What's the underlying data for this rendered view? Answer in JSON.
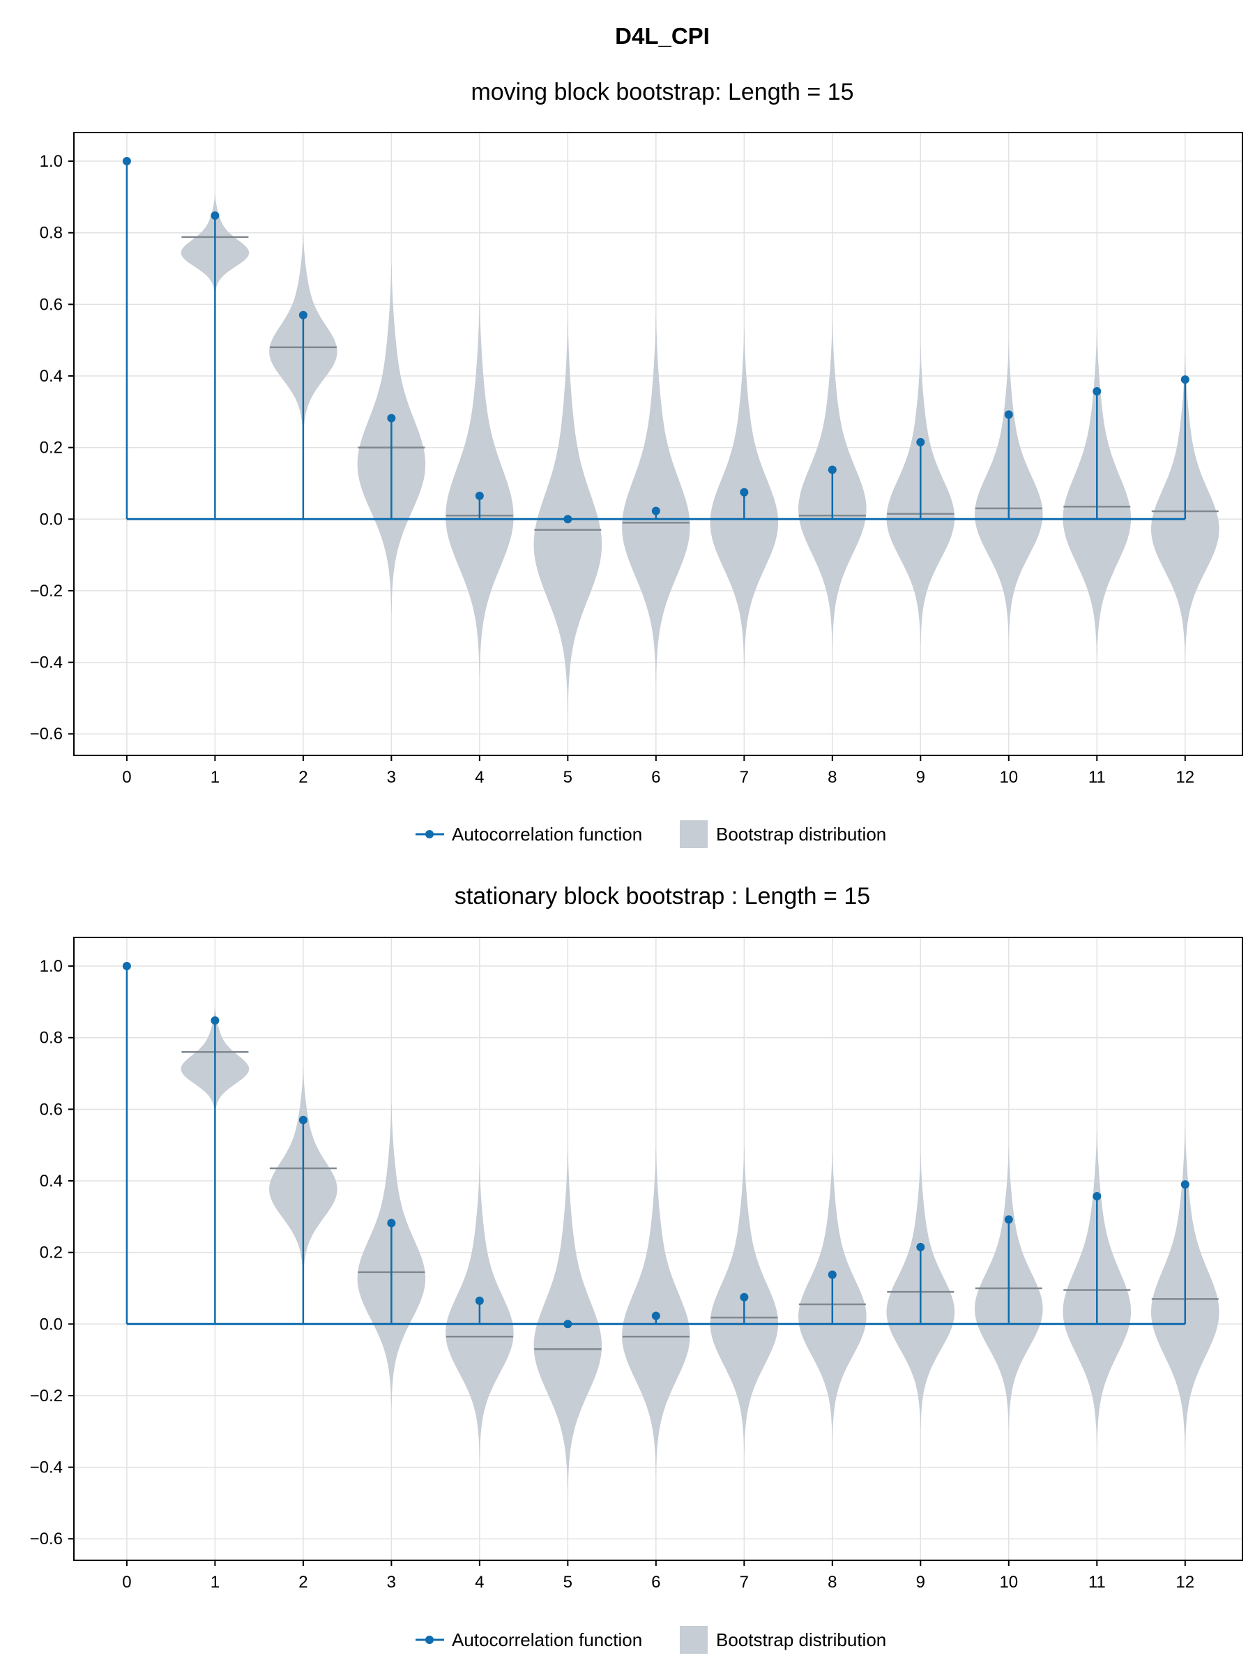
{
  "figure": {
    "title": "D4L_CPI"
  },
  "colors": {
    "acf": "#0f6cae",
    "violin_fill": "#c6cdd4",
    "median": "#808890",
    "grid": "#e2e2e2",
    "frame": "#000000"
  },
  "chart_data": [
    {
      "type": "violin+stem",
      "title": "moving block bootstrap: Length = 15",
      "xlabel": "",
      "ylabel": "",
      "xlim": [
        -0.6,
        12.65
      ],
      "ylim": [
        -0.66,
        1.08
      ],
      "x_ticks": [
        "0",
        "1",
        "2",
        "3",
        "4",
        "5",
        "6",
        "7",
        "8",
        "9",
        "10",
        "11",
        "12"
      ],
      "y_ticks": [
        "1.0",
        "0.8",
        "0.6",
        "0.4",
        "0.2",
        "0.0",
        "−0.2",
        "−0.4",
        "−0.6"
      ],
      "y_tick_values": [
        1.0,
        0.8,
        0.6,
        0.4,
        0.2,
        0.0,
        -0.2,
        -0.4,
        -0.6
      ],
      "grid": true,
      "legend": {
        "placement": "bottom-center",
        "items": [
          "Autocorrelation function",
          "Bootstrap distribution"
        ]
      },
      "acf": {
        "lags": [
          0,
          1,
          2,
          3,
          4,
          5,
          6,
          7,
          8,
          9,
          10,
          11,
          12
        ],
        "values": [
          1.0,
          0.848,
          0.57,
          0.282,
          0.065,
          0.0,
          0.023,
          0.075,
          0.138,
          0.215,
          0.292,
          0.357,
          0.39
        ]
      },
      "bootstrap": {
        "lags": [
          1,
          2,
          3,
          4,
          5,
          6,
          7,
          8,
          9,
          10,
          11,
          12
        ],
        "min": [
          0.62,
          0.22,
          -0.27,
          -0.45,
          -0.55,
          -0.47,
          -0.42,
          -0.37,
          -0.36,
          -0.35,
          -0.4,
          -0.4
        ],
        "max": [
          0.91,
          0.8,
          0.72,
          0.62,
          0.57,
          0.58,
          0.54,
          0.56,
          0.49,
          0.5,
          0.54,
          0.47
        ],
        "median": [
          0.788,
          0.48,
          0.2,
          0.01,
          -0.03,
          -0.01,
          0.0,
          0.01,
          0.015,
          0.03,
          0.035,
          0.022
        ]
      }
    },
    {
      "type": "violin+stem",
      "title": "stationary block bootstrap : Length = 15",
      "xlabel": "",
      "ylabel": "",
      "xlim": [
        -0.6,
        12.65
      ],
      "ylim": [
        -0.66,
        1.08
      ],
      "x_ticks": [
        "0",
        "1",
        "2",
        "3",
        "4",
        "5",
        "6",
        "7",
        "8",
        "9",
        "10",
        "11",
        "12"
      ],
      "y_ticks": [
        "1.0",
        "0.8",
        "0.6",
        "0.4",
        "0.2",
        "0.0",
        "−0.2",
        "−0.4",
        "−0.6"
      ],
      "y_tick_values": [
        1.0,
        0.8,
        0.6,
        0.4,
        0.2,
        0.0,
        -0.2,
        -0.4,
        -0.6
      ],
      "grid": true,
      "legend": {
        "placement": "bottom-center",
        "items": [
          "Autocorrelation function",
          "Bootstrap distribution"
        ]
      },
      "acf": {
        "lags": [
          0,
          1,
          2,
          3,
          4,
          5,
          6,
          7,
          8,
          9,
          10,
          11,
          12
        ],
        "values": [
          1.0,
          0.848,
          0.57,
          0.282,
          0.065,
          0.0,
          0.023,
          0.075,
          0.138,
          0.215,
          0.292,
          0.357,
          0.39
        ]
      },
      "bootstrap": {
        "lags": [
          1,
          2,
          3,
          4,
          5,
          6,
          7,
          8,
          9,
          10,
          11,
          12
        ],
        "min": [
          0.58,
          0.12,
          -0.24,
          -0.38,
          -0.48,
          -0.43,
          -0.37,
          -0.33,
          -0.3,
          -0.3,
          -0.35,
          -0.36
        ],
        "max": [
          0.89,
          0.72,
          0.62,
          0.45,
          0.5,
          0.5,
          0.5,
          0.49,
          0.48,
          0.5,
          0.55,
          0.56
        ],
        "median": [
          0.76,
          0.435,
          0.145,
          -0.035,
          -0.07,
          -0.035,
          0.018,
          0.055,
          0.09,
          0.1,
          0.095,
          0.07
        ]
      }
    }
  ]
}
